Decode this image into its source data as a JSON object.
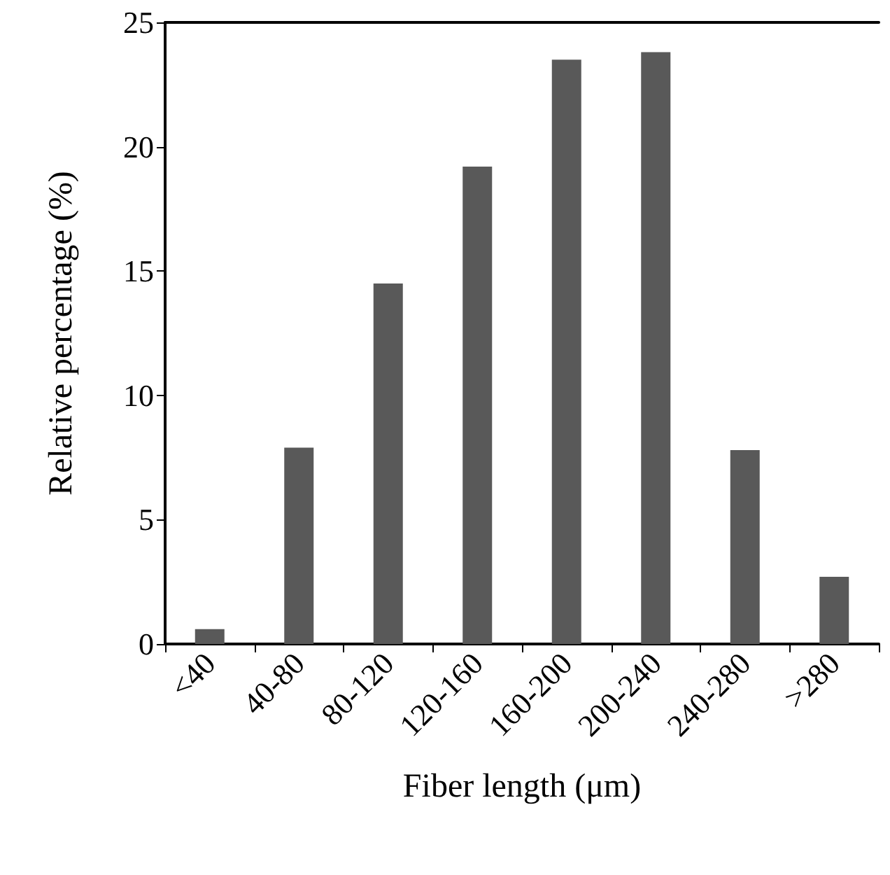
{
  "chart_data": {
    "type": "bar",
    "xlabel": "Fiber length (μm)",
    "ylabel": "Relative percentage (%)",
    "categories": [
      "<40",
      "40-80",
      "80-120",
      "120-160",
      "160-200",
      "200-240",
      "240-280",
      ">280"
    ],
    "values": [
      0.6,
      7.9,
      14.5,
      19.2,
      23.5,
      23.8,
      7.8,
      2.7
    ],
    "color": "#595959",
    "ylim": [
      0,
      25
    ],
    "yticks": [
      0,
      5,
      10,
      15,
      20,
      25
    ],
    "grid": false
  }
}
